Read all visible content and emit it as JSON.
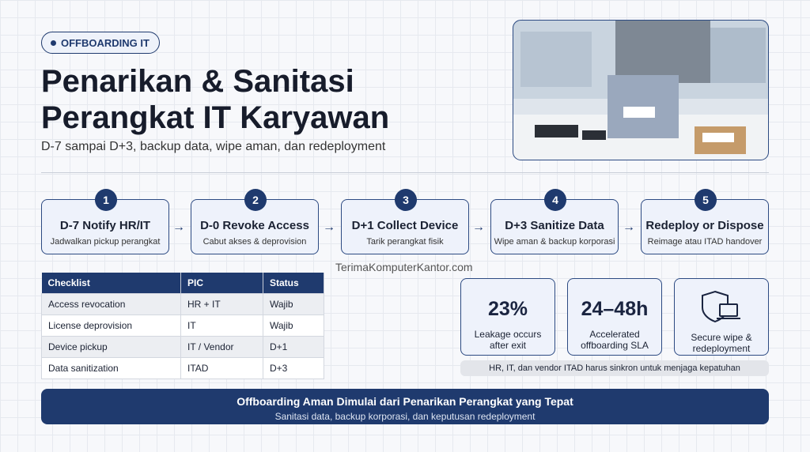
{
  "header": {
    "badge": "OFFBOARDING IT",
    "title_lines": [
      "Penarikan & Sanitasi",
      "Perangkat IT Karyawan"
    ],
    "subtitle": "D-7 sampai D+3, backup data, wipe aman, dan redeployment"
  },
  "steps": [
    {
      "number": "1",
      "title": "D-7 Notify HR/IT",
      "desc": "Jadwalkan pickup perangkat"
    },
    {
      "number": "2",
      "title": "D-0 Revoke Access",
      "desc": "Cabut akses & deprovision"
    },
    {
      "number": "3",
      "title": "D+1 Collect Device",
      "desc": "Tarik perangkat fisik"
    },
    {
      "number": "4",
      "title": "D+3 Sanitize Data",
      "desc": "Wipe aman & backup korporasi"
    },
    {
      "number": "5",
      "title": "Redeploy or Dispose",
      "desc": "Reimage atau ITAD handover"
    }
  ],
  "watermark": "TerimaKomputerKantor.com",
  "table": {
    "headers": [
      "Checklist",
      "PIC",
      "Status"
    ],
    "rows": [
      [
        "Access revocation",
        "HR + IT",
        "Wajib"
      ],
      [
        "License deprovision",
        "IT",
        "Wajib"
      ],
      [
        "Device pickup",
        "IT / Vendor",
        "D+1"
      ],
      [
        "Data sanitization",
        "ITAD",
        "D+3"
      ]
    ]
  },
  "stats": [
    {
      "value": "23%",
      "label": "Leakage occurs after exit"
    },
    {
      "value": "24–48h",
      "label": "Accelerated offboarding SLA"
    },
    {
      "label": "Secure wipe & redeployment"
    }
  ],
  "note": "HR, IT, dan vendor ITAD harus sinkron untuk menjaga kepatuhan",
  "footer": {
    "title": "Offboarding Aman Dimulai dari Penarikan Perangkat yang Tepat",
    "subtitle": "Sanitasi data, backup korporasi, dan keputusan redeployment"
  }
}
